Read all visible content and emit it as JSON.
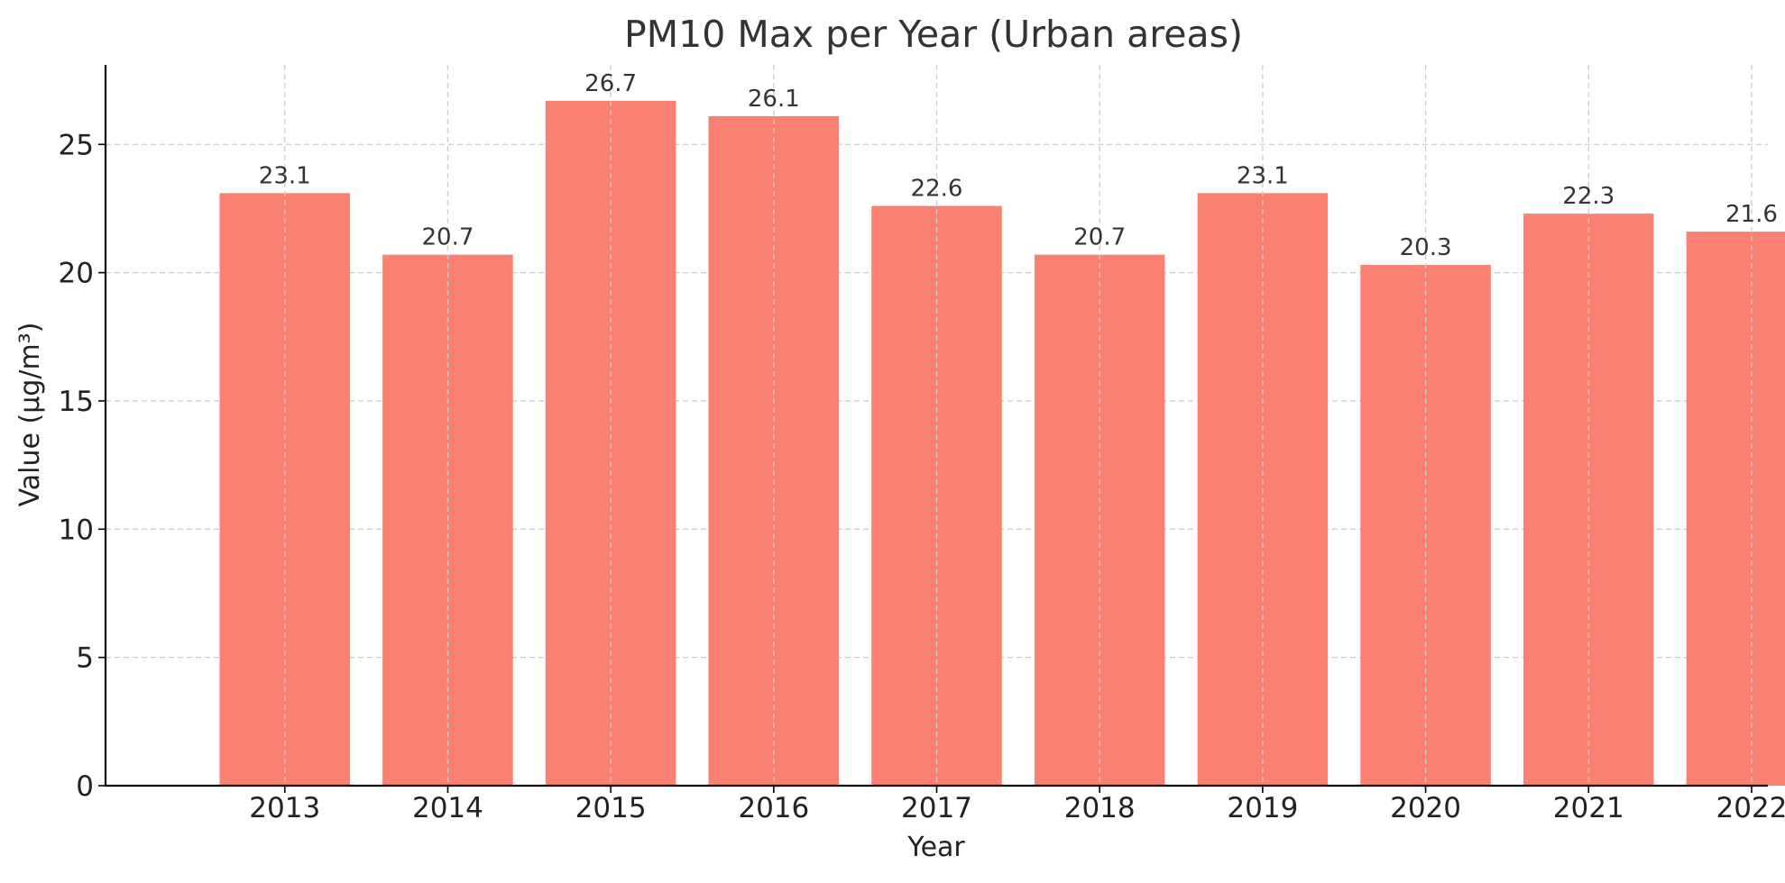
{
  "chart_data": {
    "type": "bar",
    "title": "PM10 Max per Year (Urban areas)",
    "xlabel": "Year",
    "ylabel": "Value (µg/m³)",
    "categories": [
      "2013",
      "2014",
      "2015",
      "2016",
      "2017",
      "2018",
      "2019",
      "2020",
      "2021",
      "2022"
    ],
    "values": [
      23.1,
      20.7,
      26.7,
      26.1,
      22.6,
      20.7,
      23.1,
      20.3,
      22.3,
      21.6
    ],
    "data_labels": [
      "23.1",
      "20.7",
      "26.7",
      "26.1",
      "22.6",
      "20.7",
      "23.1",
      "20.3",
      "22.3",
      "21.6"
    ],
    "ylim": [
      0,
      28.1
    ],
    "yticks": [
      0,
      5,
      10,
      15,
      20,
      25
    ],
    "ytick_labels": [
      "0",
      "5",
      "10",
      "15",
      "20",
      "25"
    ],
    "grid": true,
    "bar_color": "#fa8072"
  }
}
